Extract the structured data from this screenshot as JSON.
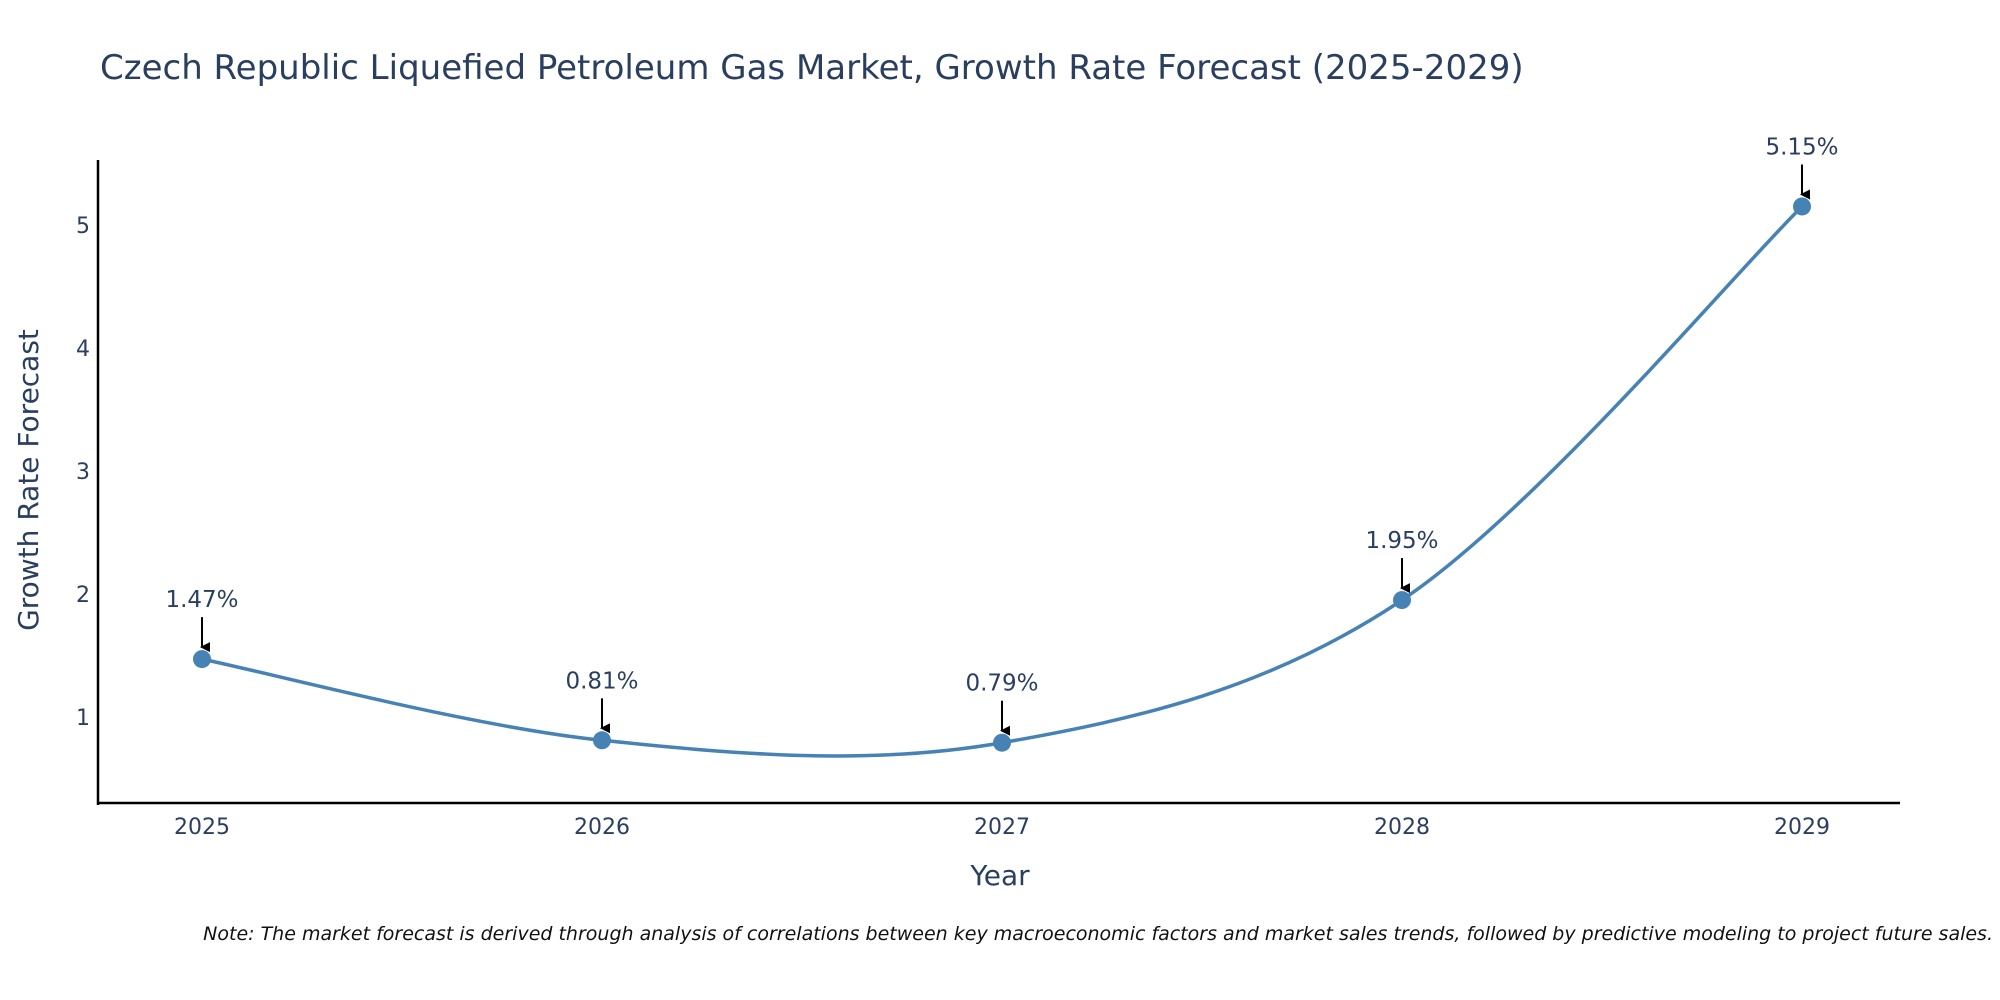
{
  "chart_data": {
    "type": "line",
    "title": "Czech Republic Liquefied Petroleum Gas Market, Growth Rate Forecast (2025-2029)",
    "xlabel": "Year",
    "ylabel": "Growth Rate Forecast",
    "categories": [
      "2025",
      "2026",
      "2027",
      "2028",
      "2029"
    ],
    "series": [
      {
        "name": "Growth Rate Forecast",
        "values": [
          1.47,
          0.81,
          0.79,
          1.95,
          5.15
        ],
        "labels": [
          "1.47%",
          "0.81%",
          "0.79%",
          "1.95%",
          "5.15%"
        ],
        "color": "#4682b4"
      }
    ],
    "yticks": [
      "1",
      "2",
      "3",
      "4",
      "5"
    ],
    "ylim": [
      0.3,
      5.65
    ],
    "grid": false,
    "legend": "none",
    "note": "Note: The market forecast is derived through analysis of correlations between key macroeconomic factors and market sales trends, followed by predictive modeling to project future sales."
  },
  "colors": {
    "line": "#4682b4",
    "axis": "#000000",
    "text": "#2a3f5f",
    "arrow": "#000000"
  }
}
